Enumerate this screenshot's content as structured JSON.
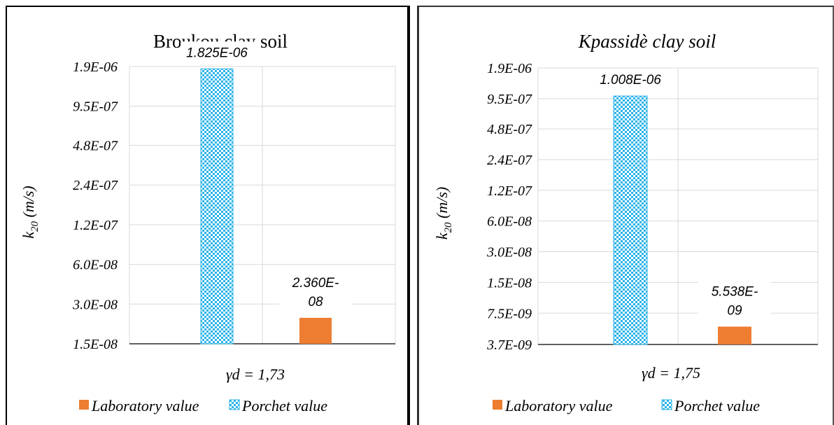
{
  "chart_data": [
    {
      "type": "bar",
      "title": "Broukou clay soil",
      "title_italic": false,
      "ylabel": "k20 (m/s)",
      "xlabel": "γd = 1,73",
      "scale": "log",
      "yticks": [
        "1.9E-06",
        "9.5E-07",
        "4.8E-07",
        "2.4E-07",
        "1.2E-07",
        "6.0E-08",
        "3.0E-08",
        "1.5E-08"
      ],
      "ylim": [
        1.5e-08,
        1.9e-06
      ],
      "series": [
        {
          "name": "Porchet value",
          "value": 1.825e-06,
          "label": [
            "1.825E-06"
          ],
          "color": "#2BB3E8",
          "pattern": "checker"
        },
        {
          "name": "Laboratory value",
          "value": 2.36e-08,
          "label": [
            "2.360E-",
            "08"
          ],
          "color": "#ED7D31",
          "pattern": "solid"
        }
      ],
      "legend": [
        "Laboratory value",
        "Porchet value"
      ],
      "legend_position": "bottom",
      "grid": true
    },
    {
      "type": "bar",
      "title": "Kpassidè clay soil",
      "title_italic": true,
      "ylabel": "k20 (m/s)",
      "xlabel": "γd = 1,75",
      "scale": "log",
      "yticks": [
        "1.9E-06",
        "9.5E-07",
        "4.8E-07",
        "2.4E-07",
        "1.2E-07",
        "6.0E-08",
        "3.0E-08",
        "1.5E-08",
        "7.5E-09",
        "3.7E-09"
      ],
      "ylim": [
        3.7e-09,
        1.9e-06
      ],
      "series": [
        {
          "name": "Porchet value",
          "value": 1.008e-06,
          "label": [
            "1.008E-06"
          ],
          "color": "#2BB3E8",
          "pattern": "checker"
        },
        {
          "name": "Laboratory value",
          "value": 5.538e-09,
          "label": [
            "5.538E-",
            "09"
          ],
          "color": "#ED7D31",
          "pattern": "solid"
        }
      ],
      "legend": [
        "Laboratory value",
        "Porchet value"
      ],
      "legend_position": "bottom",
      "grid": true
    }
  ]
}
